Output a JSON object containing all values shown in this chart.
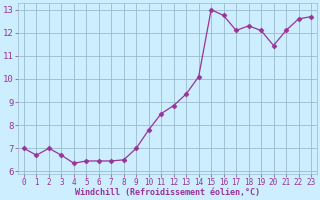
{
  "x": [
    0,
    1,
    2,
    3,
    4,
    5,
    6,
    7,
    8,
    9,
    10,
    11,
    12,
    13,
    14,
    15,
    16,
    17,
    18,
    19,
    20,
    21,
    22,
    23
  ],
  "y": [
    7.0,
    6.7,
    7.0,
    6.7,
    6.35,
    6.45,
    6.45,
    6.45,
    6.5,
    7.0,
    7.8,
    8.5,
    8.85,
    9.35,
    10.1,
    13.0,
    12.75,
    12.1,
    12.3,
    12.1,
    11.45,
    12.1,
    12.6,
    12.7
  ],
  "line_color": "#993399",
  "marker": "D",
  "marker_size": 2.5,
  "bg_color": "#cceeff",
  "grid_color": "#99bbcc",
  "xlabel": "Windchill (Refroidissement éolien,°C)",
  "xlabel_color": "#993399",
  "tick_color": "#993399",
  "ylim": [
    5.9,
    13.3
  ],
  "xlim": [
    -0.5,
    23.5
  ],
  "yticks": [
    6,
    7,
    8,
    9,
    10,
    11,
    12,
    13
  ],
  "xticks": [
    0,
    1,
    2,
    3,
    4,
    5,
    6,
    7,
    8,
    9,
    10,
    11,
    12,
    13,
    14,
    15,
    16,
    17,
    18,
    19,
    20,
    21,
    22,
    23
  ]
}
